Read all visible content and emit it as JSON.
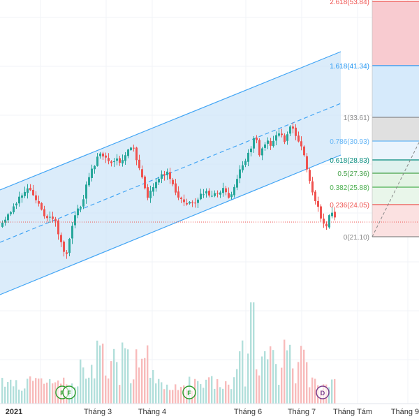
{
  "colors": {
    "up": "#26a69a",
    "down": "#ef5350",
    "up_volume": "#b2dfdb",
    "down_volume": "#f8bbbb",
    "channel_line": "#42a5f5",
    "channel_fill": "#cfe6f8",
    "price_line": "#ef5350",
    "projection": "#888888"
  },
  "x_axis": {
    "labels": [
      "2021",
      "Tháng 3",
      "Tháng 4",
      "Tháng 6",
      "Tháng 7",
      "Tháng Tám",
      "Tháng 9"
    ]
  },
  "fibonacci": {
    "levels": [
      {
        "label": "2.618(53.84)",
        "ratio": 2.618,
        "price": 53.84,
        "color": "#ef5350",
        "fill": "#f8cbd0"
      },
      {
        "label": "1.618(41.34)",
        "ratio": 1.618,
        "price": 41.34,
        "color": "#2196f3",
        "fill": "#d6eafb"
      },
      {
        "label": "1(33.61)",
        "ratio": 1,
        "price": 33.61,
        "color": "#888888",
        "fill": "#e0e0e0"
      },
      {
        "label": "0.786(30.93)",
        "ratio": 0.786,
        "price": 30.93,
        "color": "#64b5f6",
        "fill": "#eaf4fd"
      },
      {
        "label": "0.618(28.83)",
        "ratio": 0.618,
        "price": 28.83,
        "color": "#00897b",
        "fill": "#dff2ee"
      },
      {
        "label": "0.5(27.36)",
        "ratio": 0.5,
        "price": 27.36,
        "color": "#43a047",
        "fill": "#e4f4e5"
      },
      {
        "label": "0.382(25.88)",
        "ratio": 0.382,
        "price": 25.88,
        "color": "#4caf50",
        "fill": "#e9f6ea"
      },
      {
        "label": "0.236(24.05)",
        "ratio": 0.236,
        "price": 24.05,
        "color": "#ef5350",
        "fill": "#fbe1e1"
      },
      {
        "label": "0(21.10)",
        "ratio": 0,
        "price": 21.1,
        "color": "#888888",
        "fill": "#ffffff"
      }
    ]
  },
  "markers": [
    {
      "letter": "F",
      "color": "#2e9e2e"
    },
    {
      "letter": "F",
      "color": "#2e9e2e"
    },
    {
      "letter": "F",
      "color": "#2e9e2e"
    },
    {
      "letter": "D",
      "color": "#7b3e8e"
    }
  ]
}
